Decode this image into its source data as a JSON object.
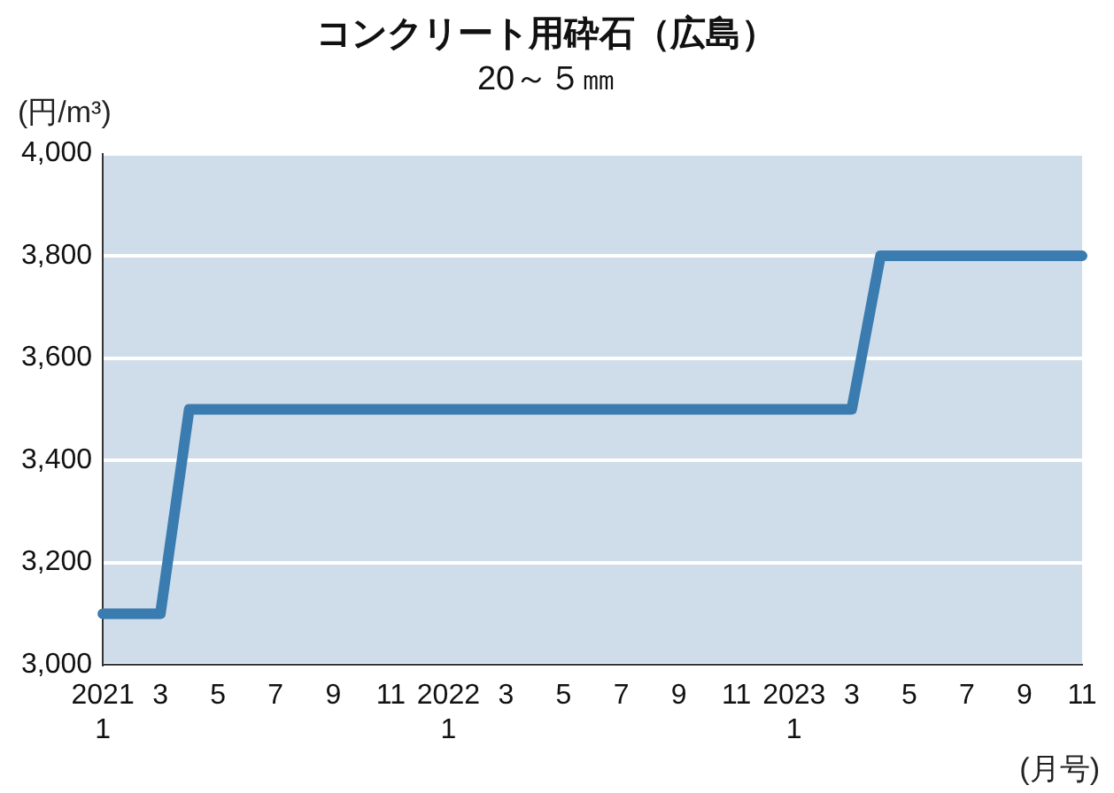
{
  "chart_data": {
    "type": "line",
    "title": "コンクリート用砕石（広島）",
    "subtitle": "20～５㎜",
    "ylabel": "(円/m³)",
    "xlabel": "(月号)",
    "categories": [
      "2021\n1",
      null,
      "3",
      null,
      "5",
      null,
      "7",
      null,
      "9",
      null,
      "11",
      null,
      "2022\n1",
      null,
      "3",
      null,
      "5",
      null,
      "7",
      null,
      "9",
      null,
      "11",
      null,
      "2023\n1",
      null,
      "3",
      null,
      "5",
      null,
      "7",
      null,
      "9",
      null,
      "11"
    ],
    "series": [
      {
        "color": "#3a7bb0",
        "values": [
          3100,
          3100,
          3100,
          3500,
          3500,
          3500,
          3500,
          3500,
          3500,
          3500,
          3500,
          3500,
          3500,
          3500,
          3500,
          3500,
          3500,
          3500,
          3500,
          3500,
          3500,
          3500,
          3500,
          3500,
          3500,
          3500,
          3500,
          3800,
          3800,
          3800,
          3800,
          3800,
          3800,
          3800,
          3800
        ]
      }
    ],
    "ylim": [
      3000,
      4000
    ],
    "yticks": [
      {
        "value": 3000,
        "label": "3,000"
      },
      {
        "value": 3200,
        "label": "3,200"
      },
      {
        "value": 3400,
        "label": "3,400"
      },
      {
        "value": 3600,
        "label": "3,600"
      },
      {
        "value": 3800,
        "label": "3,800"
      },
      {
        "value": 4000,
        "label": "4,000"
      }
    ],
    "grid": "y",
    "legend": false,
    "marker": "none",
    "line_style": "solid"
  }
}
